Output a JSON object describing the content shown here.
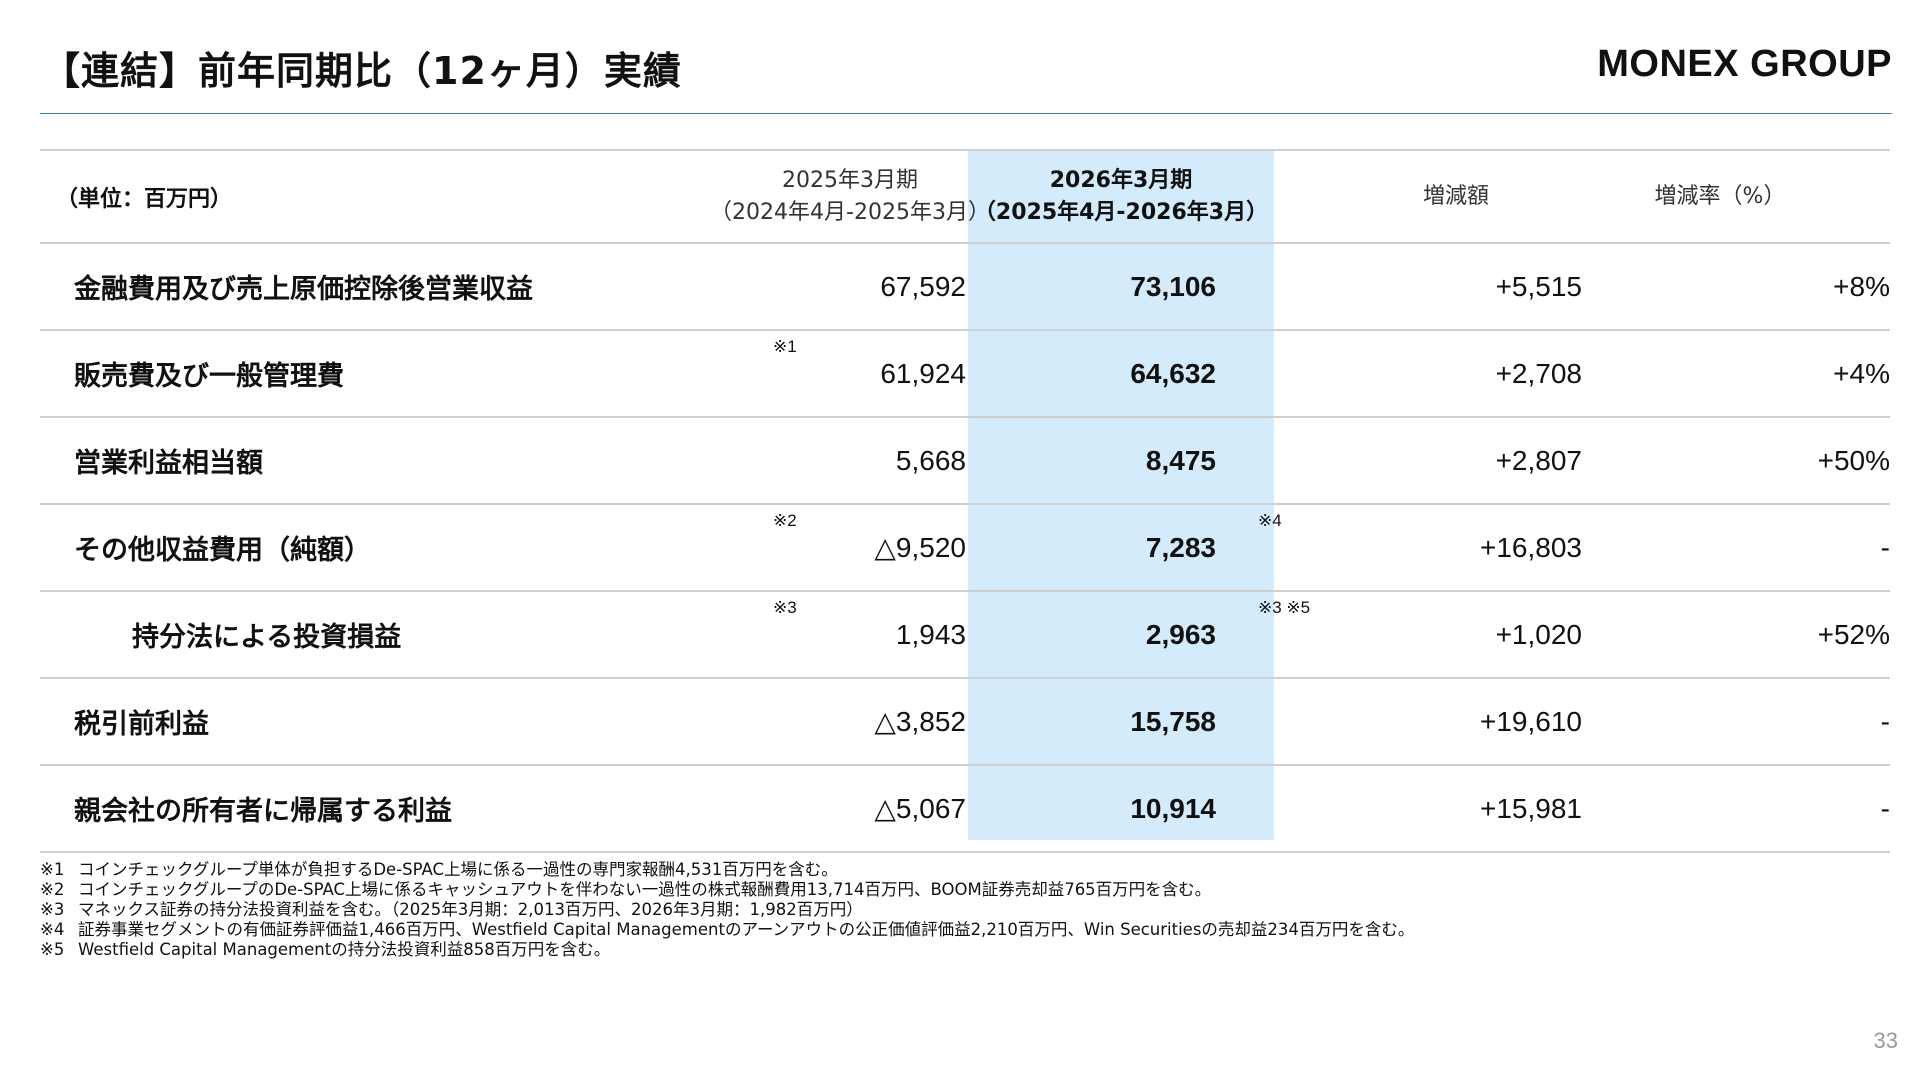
{
  "page_title": "【連結】前年同期比（12ヶ月）実績",
  "brand": "MONEX GROUP",
  "page_number": "33",
  "colors": {
    "accent_rule": "#3a82b6",
    "highlight": "#d4ebfb"
  },
  "table": {
    "unit_label": "（単位：百万円）",
    "headers": {
      "prev_line1": "2025年3月期",
      "prev_line2": "（2024年4月-2025年3月）",
      "cur_line1": "2026年3月期",
      "cur_line2": "（2025年4月-2026年3月）",
      "diff": "増減額",
      "rate": "増減率（%）"
    },
    "rows": [
      {
        "label": "金融費用及び売上原価控除後営業収益",
        "prev": "67,592",
        "cur": "73,106",
        "diff": "+5,515",
        "rate": "+8%",
        "prev_note": "",
        "cur_note": ""
      },
      {
        "label": "販売費及び一般管理費",
        "prev": "61,924",
        "cur": "64,632",
        "diff": "+2,708",
        "rate": "+4%",
        "prev_note": "※1",
        "cur_note": ""
      },
      {
        "label": "営業利益相当額",
        "prev": "5,668",
        "cur": "8,475",
        "diff": "+2,807",
        "rate": "+50%",
        "prev_note": "",
        "cur_note": ""
      },
      {
        "label": "その他収益費用（純額）",
        "prev": "△9,520",
        "cur": "7,283",
        "diff": "+16,803",
        "rate": "-",
        "prev_note": "※2",
        "cur_note": "※4"
      },
      {
        "label": "持分法による投資損益",
        "prev": "1,943",
        "cur": "2,963",
        "diff": "+1,020",
        "rate": "+52%",
        "prev_note": "※3",
        "cur_note": "※3 ※5"
      },
      {
        "label": "税引前利益",
        "prev": "△3,852",
        "cur": "15,758",
        "diff": "+19,610",
        "rate": "-",
        "prev_note": "",
        "cur_note": ""
      },
      {
        "label": "親会社の所有者に帰属する利益",
        "prev": "△5,067",
        "cur": "10,914",
        "diff": "+15,981",
        "rate": "-",
        "prev_note": "",
        "cur_note": ""
      }
    ]
  },
  "footnotes": [
    {
      "mark": "※1",
      "text": "コインチェックグループ単体が負担するDe-SPAC上場に係る一過性の専門家報酬4,531百万円を含む。"
    },
    {
      "mark": "※2",
      "text": "コインチェックグループのDe-SPAC上場に係るキャッシュアウトを伴わない一過性の株式報酬費用13,714百万円、BOOM証券売却益765百万円を含む。"
    },
    {
      "mark": "※3",
      "text": "マネックス証券の持分法投資利益を含む。（2025年3月期：2,013百万円、2026年3月期：1,982百万円）"
    },
    {
      "mark": "※4",
      "text": "証券事業セグメントの有価証券評価益1,466百万円、Westfield Capital Managementのアーンアウトの公正価値評価益2,210百万円、Win Securitiesの売却益234百万円を含む。"
    },
    {
      "mark": "※5",
      "text": "Westfield Capital Managementの持分法投資利益858百万円を含む。"
    }
  ]
}
